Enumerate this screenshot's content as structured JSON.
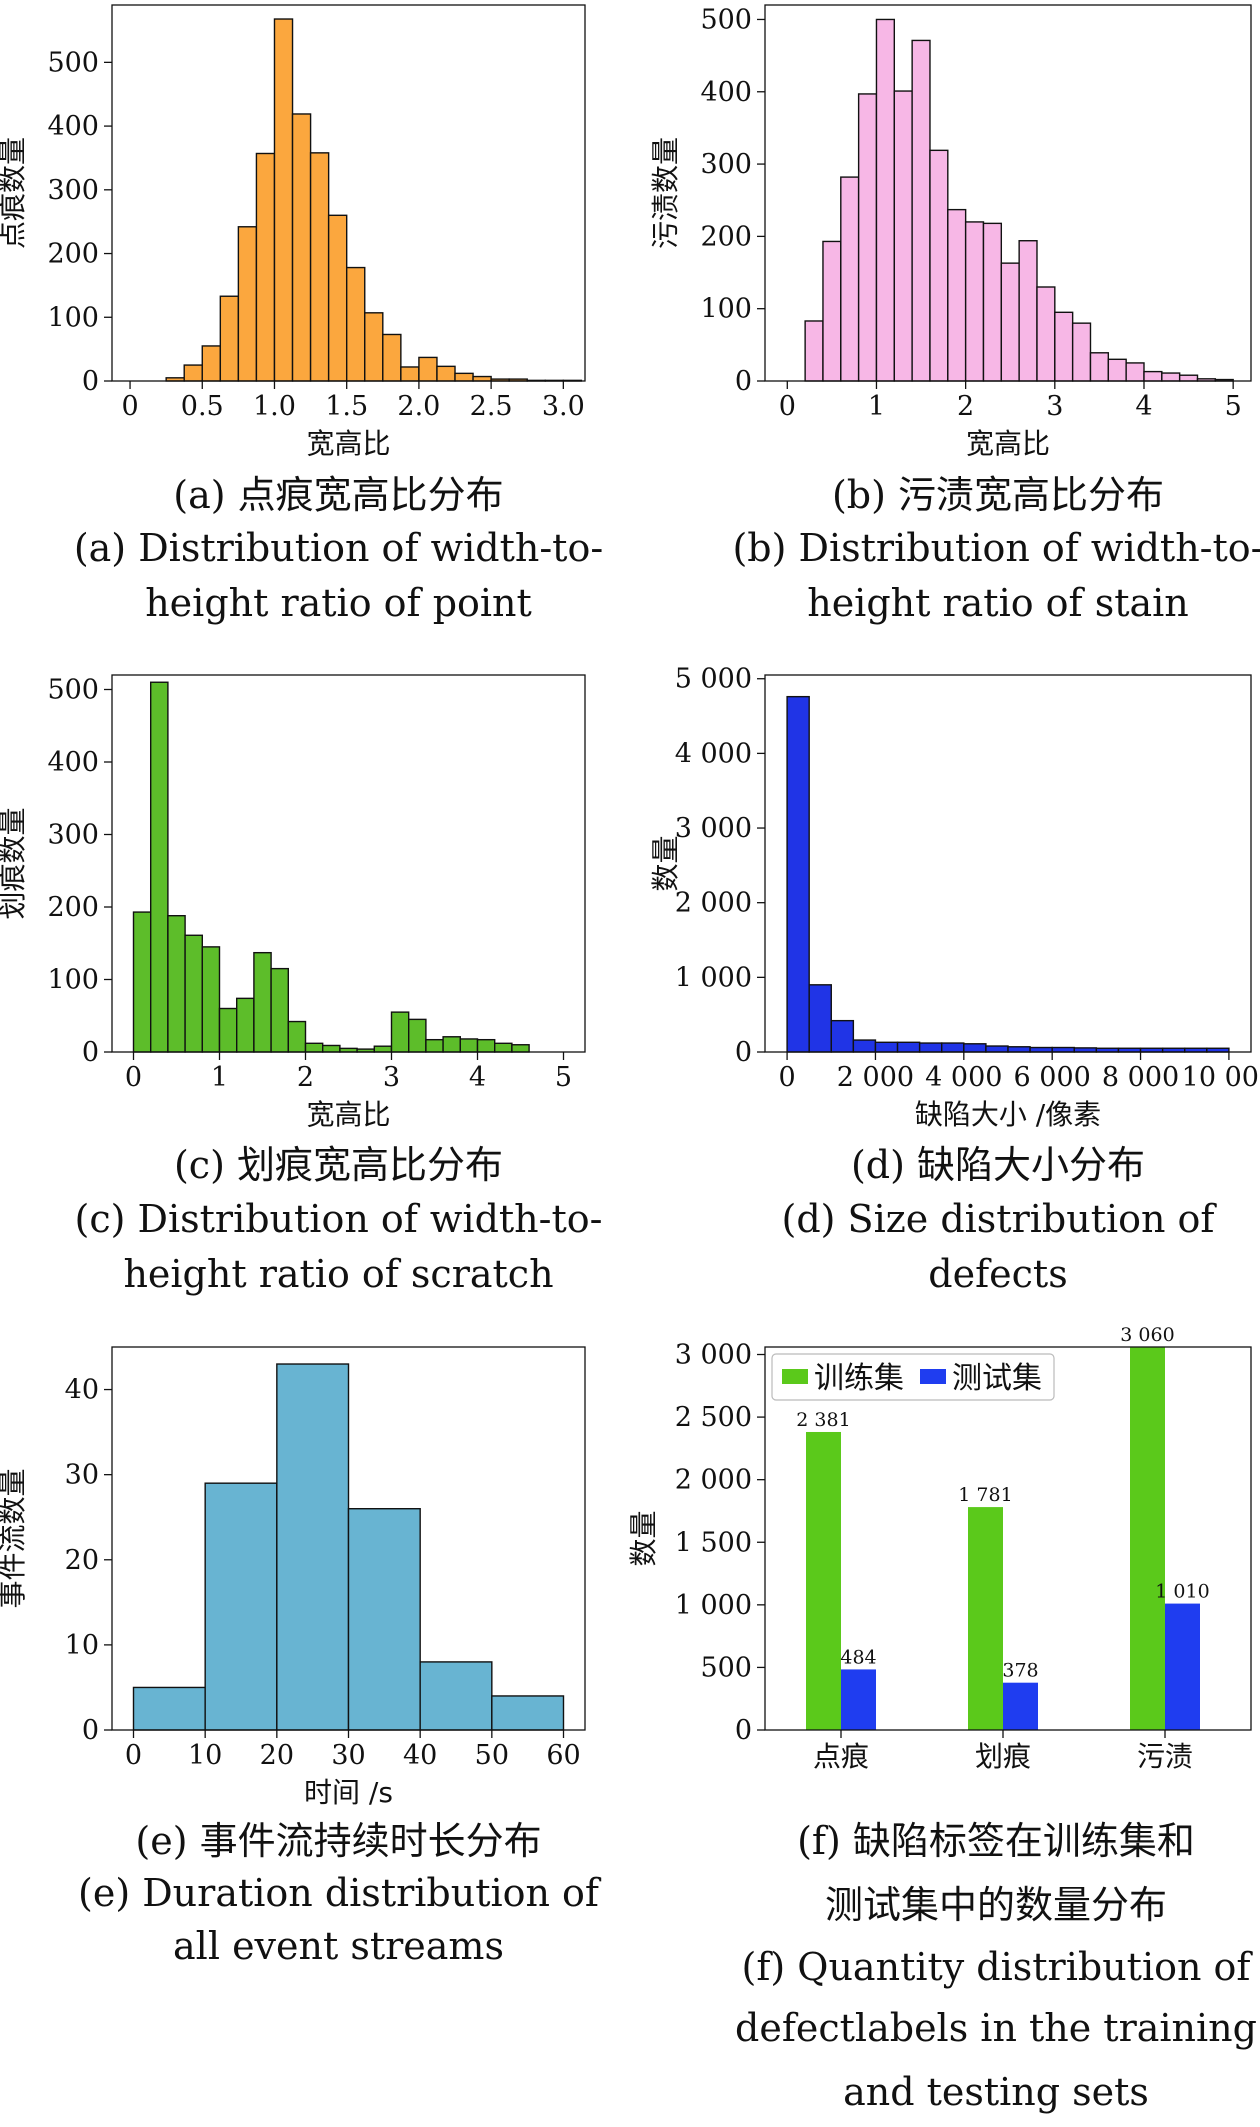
{
  "chart_data": [
    {
      "id": "a",
      "type": "bar",
      "ylabel": "点痕数量",
      "xlabel": "宽高比",
      "caption_cn": "(a) 点痕宽高比分布",
      "caption_en": [
        "(a) Distribution of width-to-",
        "height ratio of point"
      ],
      "color": "#FBA73E",
      "xlim": [
        -0.125,
        3.15
      ],
      "ylim": [
        0,
        590
      ],
      "xticks": [
        0,
        0.5,
        1.0,
        1.5,
        2.0,
        2.5,
        3.0
      ],
      "xtick_labels": [
        "0",
        "0.5",
        "1.0",
        "1.5",
        "2.0",
        "2.5",
        "3.0"
      ],
      "yticks": [
        0,
        100,
        200,
        300,
        400,
        500
      ],
      "ytick_labels": [
        "0",
        "100",
        "200",
        "300",
        "400",
        "500"
      ],
      "bin_start": 0.125,
      "bin_width": 0.125,
      "values": [
        0,
        5,
        25,
        55,
        133,
        242,
        357,
        568,
        419,
        358,
        260,
        178,
        107,
        73,
        22,
        37,
        23,
        12,
        7,
        3,
        3,
        1,
        1,
        1
      ]
    },
    {
      "id": "b",
      "type": "bar",
      "ylabel": "污渍数量",
      "xlabel": "宽高比",
      "caption_cn": "(b) 污渍宽高比分布",
      "caption_en": [
        "(b) Distribution of width-to-",
        "height ratio of stain"
      ],
      "color": "#F7B7E6",
      "xlim": [
        -0.25,
        5.2
      ],
      "ylim": [
        0,
        520
      ],
      "xticks": [
        0,
        1,
        2,
        3,
        4,
        5
      ],
      "xtick_labels": [
        "0",
        "1",
        "2",
        "3",
        "4",
        "5"
      ],
      "yticks": [
        0,
        100,
        200,
        300,
        400,
        500
      ],
      "ytick_labels": [
        "0",
        "100",
        "200",
        "300",
        "400",
        "500"
      ],
      "bin_start": 0.2,
      "bin_width": 0.2,
      "values": [
        83,
        193,
        282,
        397,
        500,
        401,
        471,
        319,
        237,
        220,
        218,
        163,
        194,
        130,
        95,
        80,
        39,
        30,
        25,
        13,
        11,
        8,
        3,
        2
      ]
    },
    {
      "id": "c",
      "type": "bar",
      "ylabel": "划痕数量",
      "xlabel": "宽高比",
      "caption_cn": "(c) 划痕宽高比分布",
      "caption_en": [
        "(c) Distribution of width-to-",
        "height ratio of scratch"
      ],
      "color": "#5DBD2A",
      "xlim": [
        -0.25,
        5.25
      ],
      "ylim": [
        0,
        520
      ],
      "xticks": [
        0,
        1,
        2,
        3,
        4,
        5
      ],
      "xtick_labels": [
        "0",
        "1",
        "2",
        "3",
        "4",
        "5"
      ],
      "yticks": [
        0,
        100,
        200,
        300,
        400,
        500
      ],
      "ytick_labels": [
        "0",
        "100",
        "200",
        "300",
        "400",
        "500"
      ],
      "bin_start": 0,
      "bin_width": 0.2,
      "values": [
        193,
        510,
        188,
        161,
        145,
        60,
        74,
        137,
        115,
        42,
        12,
        9,
        5,
        4,
        8,
        55,
        45,
        17,
        21,
        18,
        17,
        12,
        10
      ]
    },
    {
      "id": "d",
      "type": "bar",
      "ylabel": "数量",
      "xlabel": "缺陷大小 /像素",
      "caption_cn": "(d) 缺陷大小分布",
      "caption_en": [
        "(d) Size distribution of",
        "defects"
      ],
      "color": "#2034E6",
      "xlim": [
        -500,
        10500
      ],
      "ylim": [
        0,
        5050
      ],
      "xticks": [
        0,
        2000,
        4000,
        6000,
        8000,
        10000
      ],
      "xtick_labels": [
        "0",
        "2 000",
        "4 000",
        "6 000",
        "8 000",
        "10 000"
      ],
      "yticks": [
        0,
        1000,
        2000,
        3000,
        4000,
        5000
      ],
      "ytick_labels": [
        "0",
        "1 000",
        "2 000",
        "3 000",
        "4 000",
        "5 000"
      ],
      "bin_start": 0,
      "bin_width": 500,
      "values": [
        4760,
        900,
        420,
        160,
        130,
        130,
        120,
        120,
        110,
        80,
        70,
        60,
        60,
        55,
        50,
        50,
        50,
        50,
        50,
        50
      ]
    },
    {
      "id": "e",
      "type": "bar",
      "ylabel": "事件流数量",
      "xlabel": "时间 /s",
      "caption_cn": "(e) 事件流持续时长分布",
      "caption_en": [
        "(e) Duration distribution of",
        "all event streams"
      ],
      "color": "#68B4D2",
      "xlim": [
        -3,
        63
      ],
      "ylim": [
        0,
        45
      ],
      "xticks": [
        0,
        10,
        20,
        30,
        40,
        50,
        60
      ],
      "xtick_labels": [
        "0",
        "10",
        "20",
        "30",
        "40",
        "50",
        "60"
      ],
      "yticks": [
        0,
        10,
        20,
        30,
        40
      ],
      "ytick_labels": [
        "0",
        "10",
        "20",
        "30",
        "40"
      ],
      "bin_start": 0,
      "bin_width": 10,
      "values": [
        5,
        29,
        43,
        26,
        8,
        4
      ]
    },
    {
      "id": "f",
      "type": "bar",
      "ylabel": "数量",
      "caption_cn": [
        "(f) 缺陷标签在训练集和",
        "测试集中的数量分布"
      ],
      "caption_en": [
        "(f) Quantity distribution of",
        "defectlabels in the training",
        "and testing sets"
      ],
      "categories": [
        "点痕",
        "划痕",
        "污渍"
      ],
      "ylim": [
        0,
        3060
      ],
      "yticks": [
        0,
        500,
        1000,
        1500,
        2000,
        2500,
        3000
      ],
      "ytick_labels": [
        "0",
        "500",
        "1 000",
        "1 500",
        "2 000",
        "2 500",
        "3 000"
      ],
      "legend_position": "top-left",
      "series": [
        {
          "name": "训练集",
          "color": "#5BC91B",
          "values": [
            2381,
            1781,
            3060
          ],
          "labels": [
            "2 381",
            "1 781",
            "3 060"
          ]
        },
        {
          "name": "测试集",
          "color": "#1F3DF0",
          "values": [
            484,
            378,
            1010
          ],
          "labels": [
            "484",
            "378",
            "1 010"
          ]
        }
      ]
    }
  ]
}
